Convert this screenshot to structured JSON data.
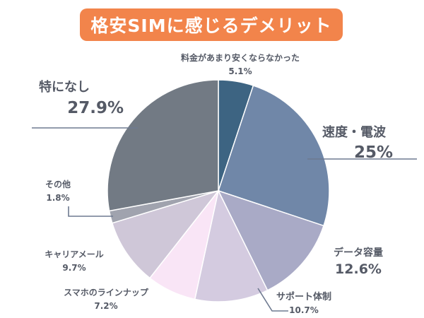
{
  "title": "格安SIMに感じるデメリット",
  "colors": {
    "title_bg": "#F2844B",
    "label_text": "#555A66",
    "leader_line": "#6E7A90"
  },
  "chart_data": {
    "type": "pie",
    "title": "格安SIMに感じるデメリット",
    "start_angle_deg": 0,
    "direction": "clockwise",
    "slices": [
      {
        "label": "料金があまり安くならなかった",
        "value": 5.1,
        "value_label": "5.1%",
        "color": "#3D6482"
      },
      {
        "label": "速度・電波",
        "value": 25,
        "value_label": "25%",
        "color": "#7087A8"
      },
      {
        "label": "データ容量",
        "value": 12.6,
        "value_label": "12.6%",
        "color": "#A9AAC6"
      },
      {
        "label": "サポート体制",
        "value": 10.7,
        "value_label": "10.7%",
        "color": "#D4CBE0"
      },
      {
        "label": "スマホのラインナップ",
        "value": 7.2,
        "value_label": "7.2%",
        "color": "#F9E5F6"
      },
      {
        "label": "キャリアメール",
        "value": 9.7,
        "value_label": "9.7%",
        "color": "#CFC7D8"
      },
      {
        "label": "その他",
        "value": 1.8,
        "value_label": "1.8%",
        "color": "#A0A3AE"
      },
      {
        "label": "特になし",
        "value": 27.9,
        "value_label": "27.9%",
        "color": "#727A84"
      }
    ]
  }
}
